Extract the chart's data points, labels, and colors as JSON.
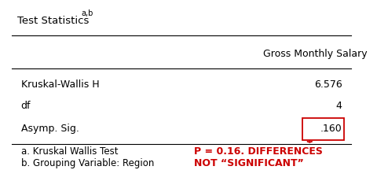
{
  "title": "Test Statistics",
  "title_superscript": "a,b",
  "col_header": "Gross Monthly Salary",
  "rows": [
    {
      "label": "Kruskal-Wallis H",
      "value": "6.576"
    },
    {
      "label": "df",
      "value": "4"
    },
    {
      "label": "Asymp. Sig.",
      "value": ".160"
    }
  ],
  "footnotes": [
    "a. Kruskal Wallis Test",
    "b. Grouping Variable: Region"
  ],
  "annotation_text_line1": "P = 0.16. DIFFERENCES",
  "annotation_text_line2": "NOT “SIGNIFICANT”",
  "annotation_color": "#cc0000",
  "box_color": "#cc0000",
  "bg_color": "#ffffff",
  "text_color": "#000000",
  "font_size": 9,
  "header_font_size": 9,
  "footnote_font_size": 8.5
}
